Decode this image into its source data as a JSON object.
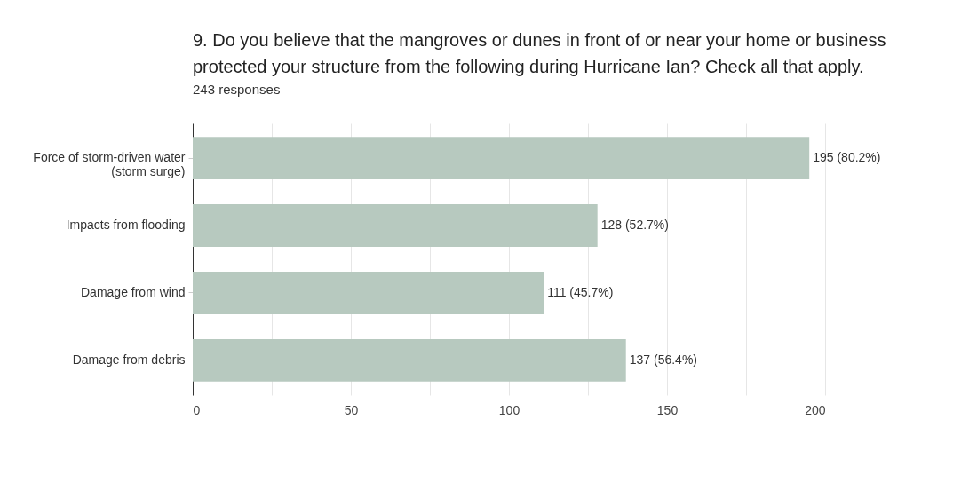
{
  "chart_data": {
    "type": "bar",
    "orientation": "horizontal",
    "title": "9. Do you believe that the mangroves or dunes in front of or near your home or business protected your structure from the following during Hurricane Ian? Check all that apply.",
    "subtitle": "243 responses",
    "categories": [
      "Force of storm-driven water (storm surge)",
      "Impacts from flooding",
      "Damage from wind",
      "Damage from debris"
    ],
    "values": [
      195,
      128,
      111,
      137
    ],
    "value_labels": [
      "195 (80.2%)",
      "128 (52.7%)",
      "111 (45.7%)",
      "137 (56.4%)"
    ],
    "color": "#b7c9bf",
    "xlim": [
      0,
      200
    ],
    "xticks": [
      0,
      {
        "value": 25,
        "label": null
      },
      50,
      {
        "value": 75,
        "label": null
      },
      100,
      {
        "value": 125,
        "label": null
      },
      150,
      {
        "value": 175,
        "label": null
      },
      200
    ],
    "grid": "x"
  }
}
